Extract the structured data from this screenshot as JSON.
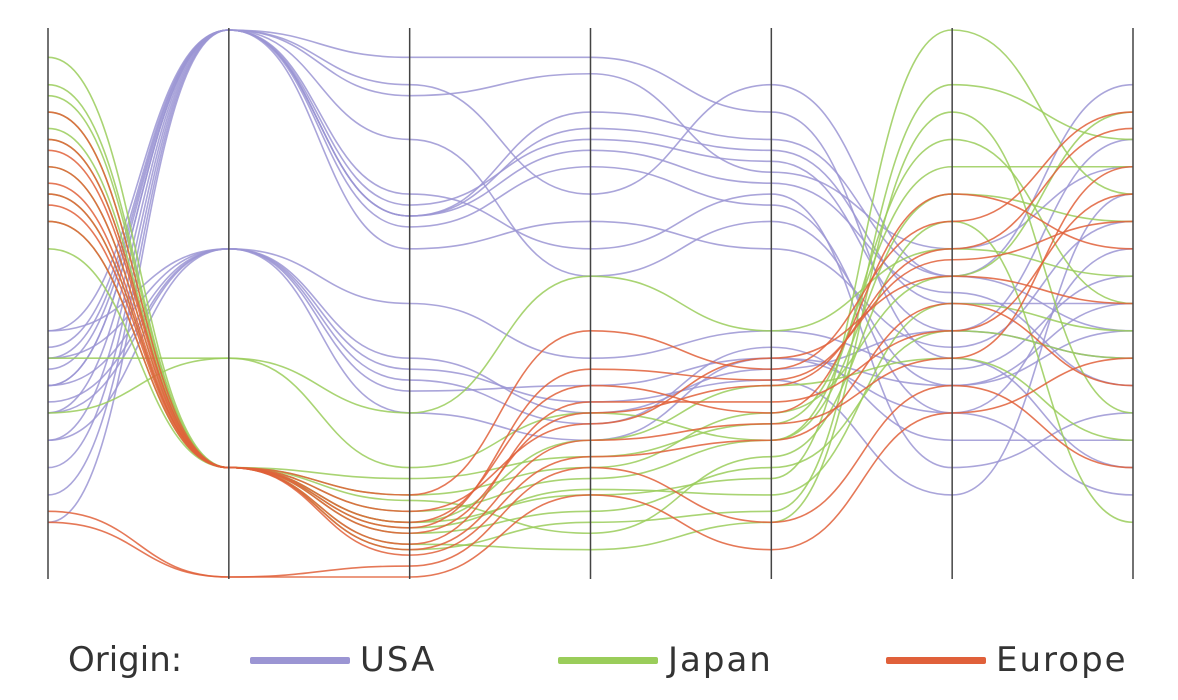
{
  "legend": {
    "title": "Origin:"
  },
  "chart_data": {
    "type": "parallel-coordinates",
    "axes_count": 7,
    "series": [
      {
        "name": "USA",
        "color": "#9b95d3",
        "lines": [
          [
            0.35,
            1.0,
            0.66,
            0.82,
            0.78,
            0.5,
            0.5
          ],
          [
            0.4,
            1.0,
            0.66,
            0.85,
            0.8,
            0.55,
            0.45
          ],
          [
            0.2,
            1.0,
            0.88,
            0.92,
            0.74,
            0.6,
            0.75
          ],
          [
            0.3,
            1.0,
            0.7,
            0.6,
            0.7,
            0.2,
            0.3
          ],
          [
            0.25,
            1.0,
            0.68,
            0.8,
            0.76,
            0.45,
            0.8
          ],
          [
            0.45,
            1.0,
            0.66,
            0.78,
            0.72,
            0.52,
            0.35
          ],
          [
            0.15,
            1.0,
            0.95,
            0.95,
            0.85,
            0.4,
            0.2
          ],
          [
            0.35,
            1.0,
            0.64,
            0.75,
            0.68,
            0.3,
            0.6
          ],
          [
            0.4,
            0.6,
            0.34,
            0.35,
            0.4,
            0.35,
            0.5
          ],
          [
            0.35,
            0.6,
            0.5,
            0.4,
            0.45,
            0.38,
            0.55
          ],
          [
            0.3,
            0.6,
            0.4,
            0.3,
            0.38,
            0.45,
            0.4
          ],
          [
            0.45,
            0.6,
            0.36,
            0.28,
            0.42,
            0.25,
            0.25
          ],
          [
            0.25,
            0.6,
            0.38,
            0.32,
            0.36,
            0.15,
            0.7
          ],
          [
            0.1,
            1.0,
            0.9,
            0.7,
            0.9,
            0.55,
            0.9
          ],
          [
            0.38,
            1.0,
            0.8,
            0.55,
            0.65,
            0.35,
            0.45
          ],
          [
            0.32,
            0.6,
            0.3,
            0.25,
            0.4,
            0.3,
            0.15
          ],
          [
            0.42,
            1.0,
            0.6,
            0.65,
            0.6,
            0.42,
            0.65
          ]
        ]
      },
      {
        "name": "Japan",
        "color": "#9acd5a",
        "lines": [
          [
            0.9,
            0.2,
            0.1,
            0.15,
            0.18,
            1.0,
            0.7
          ],
          [
            0.95,
            0.2,
            0.05,
            0.1,
            0.12,
            0.9,
            0.8
          ],
          [
            0.85,
            0.2,
            0.12,
            0.18,
            0.25,
            0.8,
            0.5
          ],
          [
            0.8,
            0.2,
            0.08,
            0.12,
            0.2,
            0.45,
            0.4
          ],
          [
            0.88,
            0.2,
            0.15,
            0.2,
            0.3,
            0.55,
            0.85
          ],
          [
            0.75,
            0.2,
            0.06,
            0.05,
            0.1,
            0.85,
            0.3
          ],
          [
            0.4,
            0.4,
            0.2,
            0.3,
            0.25,
            0.7,
            0.65
          ],
          [
            0.3,
            0.4,
            0.3,
            0.55,
            0.45,
            0.6,
            0.55
          ],
          [
            0.7,
            0.2,
            0.1,
            0.25,
            0.35,
            0.4,
            0.25
          ],
          [
            0.82,
            0.2,
            0.14,
            0.08,
            0.22,
            0.65,
            0.1
          ],
          [
            0.6,
            0.2,
            0.18,
            0.22,
            0.28,
            0.75,
            0.75
          ],
          [
            0.65,
            0.2,
            0.09,
            0.16,
            0.15,
            0.5,
            0.45
          ]
        ]
      },
      {
        "name": "Europe",
        "color": "#e0603a",
        "lines": [
          [
            0.75,
            0.2,
            0.08,
            0.3,
            0.35,
            0.6,
            0.82
          ],
          [
            0.7,
            0.2,
            0.05,
            0.25,
            0.28,
            0.4,
            0.75
          ],
          [
            0.8,
            0.2,
            0.1,
            0.35,
            0.3,
            0.7,
            0.6
          ],
          [
            0.65,
            0.2,
            0.12,
            0.28,
            0.4,
            0.55,
            0.5
          ],
          [
            0.85,
            0.2,
            0.06,
            0.32,
            0.32,
            0.45,
            0.7
          ],
          [
            0.1,
            0.0,
            0.02,
            0.2,
            0.1,
            0.35,
            0.2
          ],
          [
            0.12,
            0.0,
            0.0,
            0.15,
            0.05,
            0.3,
            0.4
          ],
          [
            0.72,
            0.2,
            0.15,
            0.45,
            0.38,
            0.65,
            0.85
          ],
          [
            0.78,
            0.2,
            0.04,
            0.22,
            0.25,
            0.5,
            0.35
          ],
          [
            0.68,
            0.2,
            0.09,
            0.38,
            0.36,
            0.58,
            0.65
          ]
        ]
      }
    ]
  }
}
